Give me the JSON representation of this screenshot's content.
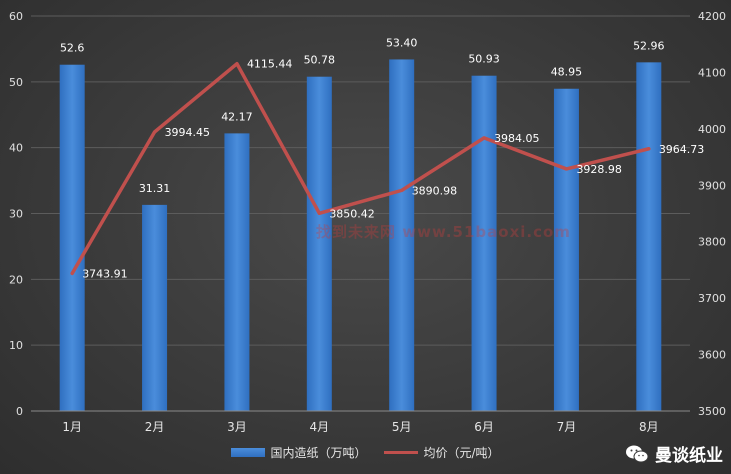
{
  "chart_data": {
    "type": "bar",
    "categories": [
      "1月",
      "2月",
      "3月",
      "4月",
      "5月",
      "6月",
      "7月",
      "8月"
    ],
    "series": [
      {
        "name": "国内造纸（万吨）",
        "type": "bar",
        "axis": "left",
        "values": [
          52.6,
          31.31,
          42.17,
          50.78,
          53.4,
          50.93,
          48.95,
          52.96
        ],
        "labels": [
          "52.6",
          "31.31",
          "42.17",
          "50.78",
          "53.40",
          "50.93",
          "48.95",
          "52.96"
        ],
        "color": "#3a7bd5"
      },
      {
        "name": "均价（元/吨）",
        "type": "line",
        "axis": "right",
        "values": [
          3743.91,
          3994.45,
          4115.44,
          3850.42,
          3890.98,
          3984.05,
          3928.98,
          3964.73
        ],
        "labels": [
          "3743.91",
          "3994.45",
          "4115.44",
          "3850.42",
          "3890.98",
          "3984.05",
          "3928.98",
          "3964.73"
        ],
        "color": "#c0504d"
      }
    ],
    "y_left": {
      "min": 0,
      "max": 60,
      "ticks": [
        "0",
        "10",
        "20",
        "30",
        "40",
        "50",
        "60"
      ]
    },
    "y_right": {
      "min": 3500,
      "max": 4200,
      "ticks": [
        "3500",
        "3600",
        "3700",
        "3800",
        "3900",
        "4000",
        "4100",
        "4200"
      ]
    },
    "grid": true,
    "legend_position": "bottom"
  },
  "watermark": "找到未来网 www.51baoxi.com",
  "brand": {
    "name": "曼谈纸业",
    "icon": "wechat-icon"
  }
}
